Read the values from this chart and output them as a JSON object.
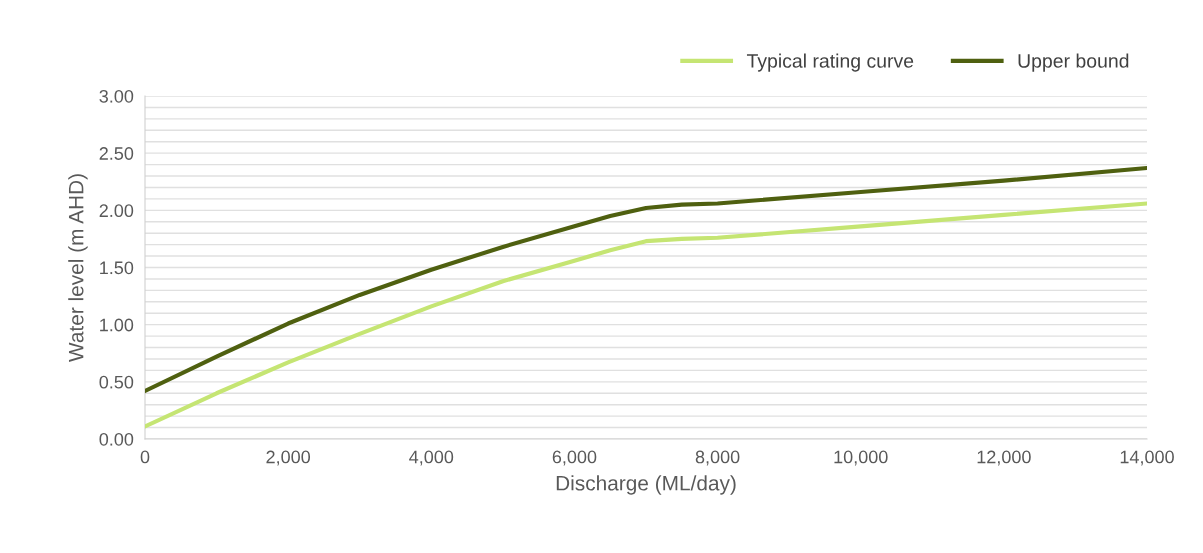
{
  "chart_data": {
    "type": "line",
    "xlabel": "Discharge (ML/day)",
    "ylabel": "Water level (m AHD)",
    "x": [
      0,
      1000,
      2000,
      3000,
      4000,
      5000,
      6000,
      6500,
      7000,
      7500,
      8000,
      10000,
      12000,
      14000
    ],
    "series": [
      {
        "name": "Typical rating curve",
        "color": "#c5e573",
        "values": [
          0.11,
          0.4,
          0.67,
          0.92,
          1.16,
          1.38,
          1.56,
          1.65,
          1.73,
          1.75,
          1.76,
          1.86,
          1.96,
          2.06
        ]
      },
      {
        "name": "Upper bound",
        "color": "#4f6010",
        "values": [
          0.42,
          0.72,
          1.01,
          1.26,
          1.48,
          1.68,
          1.86,
          1.95,
          2.02,
          2.05,
          2.06,
          2.16,
          2.26,
          2.37
        ]
      }
    ],
    "xlim": [
      0,
      14000
    ],
    "ylim": [
      0,
      3
    ],
    "xticks": [
      {
        "value": 0,
        "label": "0"
      },
      {
        "value": 2000,
        "label": "2,000"
      },
      {
        "value": 4000,
        "label": "4,000"
      },
      {
        "value": 6000,
        "label": "6,000"
      },
      {
        "value": 8000,
        "label": "8,000"
      },
      {
        "value": 10000,
        "label": "10,000"
      },
      {
        "value": 12000,
        "label": "12,000"
      },
      {
        "value": 14000,
        "label": "14,000"
      }
    ],
    "yticks": [
      {
        "value": 0,
        "label": "0.00"
      },
      {
        "value": 0.1,
        "label": null
      },
      {
        "value": 0.2,
        "label": null
      },
      {
        "value": 0.3,
        "label": null
      },
      {
        "value": 0.4,
        "label": null
      },
      {
        "value": 0.5,
        "label": "0.50"
      },
      {
        "value": 0.6,
        "label": null
      },
      {
        "value": 0.7,
        "label": null
      },
      {
        "value": 0.8,
        "label": null
      },
      {
        "value": 0.9,
        "label": null
      },
      {
        "value": 1.0,
        "label": "1.00"
      },
      {
        "value": 1.1,
        "label": null
      },
      {
        "value": 1.2,
        "label": null
      },
      {
        "value": 1.3,
        "label": null
      },
      {
        "value": 1.4,
        "label": null
      },
      {
        "value": 1.5,
        "label": "1.50"
      },
      {
        "value": 1.6,
        "label": null
      },
      {
        "value": 1.7,
        "label": null
      },
      {
        "value": 1.8,
        "label": null
      },
      {
        "value": 1.9,
        "label": null
      },
      {
        "value": 2.0,
        "label": "2.00"
      },
      {
        "value": 2.1,
        "label": null
      },
      {
        "value": 2.2,
        "label": null
      },
      {
        "value": 2.3,
        "label": null
      },
      {
        "value": 2.4,
        "label": null
      },
      {
        "value": 2.5,
        "label": "2.50"
      },
      {
        "value": 2.6,
        "label": null
      },
      {
        "value": 2.7,
        "label": null
      },
      {
        "value": 2.8,
        "label": null
      },
      {
        "value": 2.9,
        "label": null
      },
      {
        "value": 3.0,
        "label": "3.00"
      }
    ],
    "grid": "y",
    "legend": "top right",
    "marker": "none",
    "line_style": "solid"
  }
}
